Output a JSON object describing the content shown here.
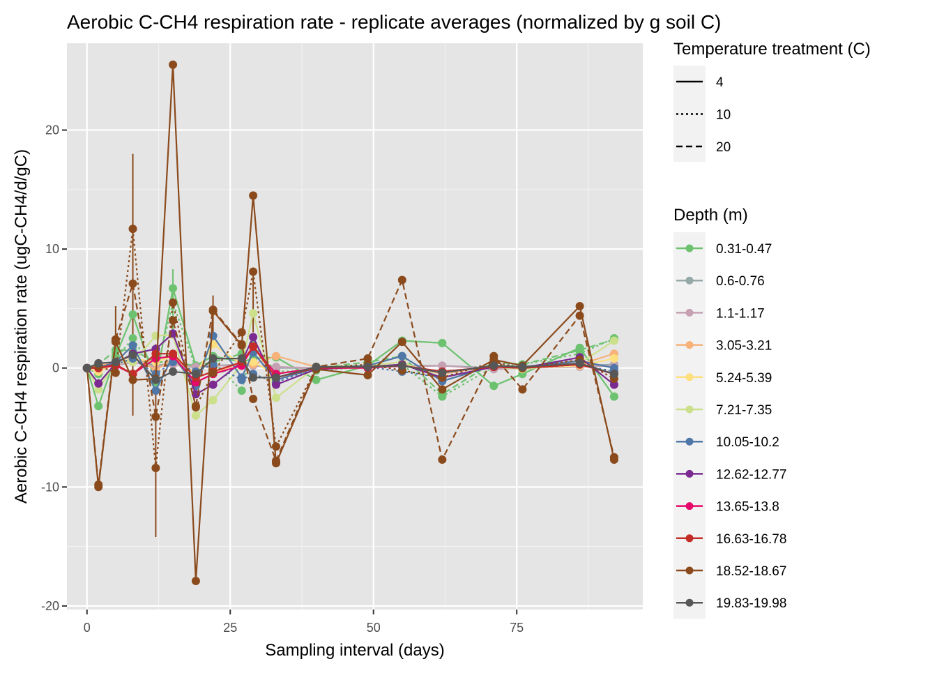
{
  "chart_data": {
    "type": "line",
    "title": "Aerobic C-CH4 respiration rate - replicate averages (normalized by g soil C)",
    "xlabel": "Sampling interval (days)",
    "ylabel": "Aerobic C-CH4 respiration rate (ugC-CH4/d/gC)",
    "xlim": [
      -3.5,
      97
    ],
    "ylim": [
      -20.3,
      27.3
    ],
    "x_ticks": [
      0,
      25,
      50,
      75
    ],
    "y_ticks": [
      -20,
      -10,
      0,
      10,
      20
    ],
    "x_tick_labels": [
      "0",
      "25",
      "50",
      "75"
    ],
    "y_tick_labels": [
      "-20",
      "-10",
      "0",
      "10",
      "20"
    ],
    "grid": true,
    "legend_position": "right",
    "legend_temperature": {
      "title": "Temperature treatment (C)",
      "entries": [
        {
          "label": "4",
          "dash": "solid"
        },
        {
          "label": "10",
          "dash": "dotted"
        },
        {
          "label": "20",
          "dash": "dashed"
        }
      ]
    },
    "legend_depth": {
      "title": "Depth (m)",
      "entries": [
        {
          "label": "0.31-0.47",
          "color": "#6cc26e"
        },
        {
          "label": "0.6-0.76",
          "color": "#94a9a8"
        },
        {
          "label": "1.1-1.17",
          "color": "#c5a1b3"
        },
        {
          "label": "3.05-3.21",
          "color": "#f7b27a"
        },
        {
          "label": "5.24-5.39",
          "color": "#fedf7f"
        },
        {
          "label": "7.21-7.35",
          "color": "#cce08c"
        },
        {
          "label": "10.05-10.2",
          "color": "#4f77a7"
        },
        {
          "label": "12.62-12.77",
          "color": "#7a2a91"
        },
        {
          "label": "13.65-13.8",
          "color": "#e6076a"
        },
        {
          "label": "16.63-16.78",
          "color": "#c42d27"
        },
        {
          "label": "18.52-18.67",
          "color": "#8b4a1c"
        },
        {
          "label": "19.83-19.98",
          "color": "#575757"
        }
      ]
    },
    "x": [
      0,
      2,
      5,
      8,
      12,
      15,
      19,
      22,
      27,
      29,
      33,
      40,
      49,
      55,
      62,
      71,
      76,
      86,
      92
    ],
    "series": [
      {
        "depth": "0.31-0.47",
        "temp": "4",
        "values": [
          0,
          -3.2,
          1.0,
          4.5,
          -1.2,
          6.7,
          0.2,
          1.0,
          0.5,
          0.8,
          0.9,
          -1.0,
          0.2,
          2.3,
          2.1,
          -1.5,
          -0.5,
          1.7,
          -2.4
        ]
      },
      {
        "depth": "0.31-0.47",
        "temp": "10",
        "values": [
          0,
          -0.5,
          0.8,
          2.5,
          -0.5,
          5.5,
          0.0,
          0.5,
          -1.9,
          2.0,
          -0.3,
          -0.2,
          0.1,
          0.3,
          -2.4,
          0.1,
          0.3,
          1.2,
          2.5
        ]
      },
      {
        "depth": "0.31-0.47",
        "temp": "20",
        "values": [
          0,
          0.3,
          1.5,
          1.5,
          0.5,
          0.5,
          0.2,
          0.5,
          1.2,
          0.5,
          -0.5,
          0.0,
          0.5,
          1.0,
          -2.2,
          0.5,
          0.3,
          1.5,
          2.4
        ]
      },
      {
        "depth": "0.6-0.76",
        "temp": "4",
        "values": [
          0,
          0.0,
          0.3,
          0.8,
          0.2,
          0.4,
          0.0,
          0.2,
          0.3,
          0.2,
          0.0,
          0.0,
          0.1,
          0.2,
          0.2,
          0.0,
          0.1,
          0.2,
          0.3
        ]
      },
      {
        "depth": "1.1-1.17",
        "temp": "4",
        "values": [
          0,
          0.1,
          0.2,
          0.5,
          0.1,
          0.3,
          0.1,
          0.2,
          0.2,
          0.2,
          0.1,
          0.0,
          0.1,
          0.1,
          0.2,
          -0.1,
          0.0,
          0.1,
          0.2
        ]
      },
      {
        "depth": "3.05-3.21",
        "temp": "4",
        "values": [
          0,
          0.2,
          0.5,
          1.0,
          -0.2,
          0.8,
          -1.2,
          -0.5,
          0.5,
          0.3,
          1.0,
          0.1,
          0.1,
          0.3,
          -0.5,
          0.2,
          0.1,
          0.3,
          1.2
        ]
      },
      {
        "depth": "5.24-5.39",
        "temp": "4",
        "values": [
          0,
          -0.3,
          0.3,
          0.8,
          0.5,
          1.0,
          -0.5,
          2.0,
          0.3,
          0.5,
          -0.5,
          0.0,
          0.0,
          0.2,
          -0.3,
          0.1,
          0.0,
          0.2,
          0.8
        ]
      },
      {
        "depth": "7.21-7.35",
        "temp": "4",
        "values": [
          0,
          -1.8,
          0.5,
          0.5,
          2.7,
          2.8,
          -4.0,
          -2.7,
          0.3,
          4.6,
          -2.5,
          0.1,
          0.2,
          0.5,
          -0.8,
          0.1,
          -0.1,
          0.4,
          2.3
        ]
      },
      {
        "depth": "10.05-10.2",
        "temp": "4",
        "values": [
          0,
          0.0,
          0.5,
          1.9,
          -1.9,
          1.0,
          -1.5,
          2.7,
          -0.8,
          1.3,
          -1.0,
          0.0,
          0.2,
          1.0,
          -1.1,
          0.2,
          0.1,
          0.6,
          0.0
        ]
      },
      {
        "depth": "10.05-10.2",
        "temp": "10",
        "values": [
          0,
          0.2,
          0.3,
          0.8,
          -0.5,
          0.5,
          -0.3,
          0.3,
          -1.0,
          -0.5,
          -1.2,
          0.0,
          0.1,
          -0.3,
          -0.8,
          0.1,
          0.0,
          0.3,
          -0.3
        ]
      },
      {
        "depth": "12.62-12.77",
        "temp": "4",
        "values": [
          0,
          -1.3,
          0.4,
          1.2,
          1.6,
          2.9,
          -2.2,
          -1.4,
          0.5,
          2.6,
          -1.4,
          -0.1,
          0.1,
          0.3,
          -0.8,
          0.1,
          0.0,
          0.9,
          -1.4
        ]
      },
      {
        "depth": "13.65-13.8",
        "temp": "4",
        "values": [
          0,
          0.0,
          0.2,
          -0.5,
          0.8,
          1.0,
          -1.2,
          -0.5,
          0.2,
          1.8,
          -0.5,
          0.0,
          0.0,
          0.2,
          -0.3,
          0.1,
          0.0,
          0.3,
          -0.5
        ]
      },
      {
        "depth": "16.63-16.78",
        "temp": "4",
        "values": [
          0,
          0.0,
          0.3,
          -0.5,
          1.2,
          1.2,
          -0.8,
          -0.3,
          0.5,
          1.8,
          -0.8,
          0.0,
          0.1,
          0.2,
          -0.3,
          0.1,
          0.0,
          0.3,
          -0.5
        ]
      },
      {
        "depth": "18.52-18.67",
        "temp": "4",
        "values": [
          0,
          -10.0,
          2.2,
          -1.0,
          -0.9,
          25.5,
          -17.9,
          4.8,
          1.9,
          14.5,
          -8.0,
          -0.1,
          -0.6,
          2.2,
          -1.8,
          0.7,
          0.2,
          5.2,
          -7.7
        ]
      },
      {
        "depth": "18.52-18.67",
        "temp": "10",
        "values": [
          0,
          0.2,
          -0.4,
          11.7,
          -8.4,
          5.5,
          -3.3,
          -0.4,
          3.0,
          8.1,
          -6.6,
          0.0,
          0.3,
          -0.2,
          -0.8,
          0.5,
          0.0,
          0.7,
          -0.9
        ]
      },
      {
        "depth": "18.52-18.67",
        "temp": "20",
        "values": [
          0,
          -9.8,
          2.4,
          7.1,
          -4.1,
          4.0,
          -3.2,
          4.9,
          2.0,
          -2.6,
          -7.8,
          0.1,
          0.8,
          7.4,
          -7.7,
          1.0,
          -1.8,
          4.4,
          -7.5
        ]
      },
      {
        "depth": "19.83-19.98",
        "temp": "4",
        "values": [
          0,
          0.4,
          0.5,
          1.1,
          -1.0,
          -0.3,
          -0.5,
          0.8,
          0.8,
          -0.8,
          -0.8,
          0.1,
          0.1,
          0.2,
          -0.4,
          0.2,
          0.1,
          0.4,
          -0.5
        ]
      }
    ],
    "error_bars": [
      {
        "x": 8,
        "low": -4.0,
        "high": 18.0,
        "color": "#8b4a1c"
      },
      {
        "x": 12,
        "low": -14.2,
        "high": 2.0,
        "color": "#8b4a1c"
      },
      {
        "x": 15,
        "low": 2.8,
        "high": 8.3,
        "color": "#6cc26e"
      },
      {
        "x": 22,
        "low": 3.0,
        "high": 6.1,
        "color": "#8b4a1c"
      },
      {
        "x": 29,
        "low": 3.0,
        "high": 8.3,
        "color": "#8b4a1c"
      },
      {
        "x": 5,
        "low": 0.5,
        "high": 5.2,
        "color": "#8b4a1c"
      }
    ]
  }
}
